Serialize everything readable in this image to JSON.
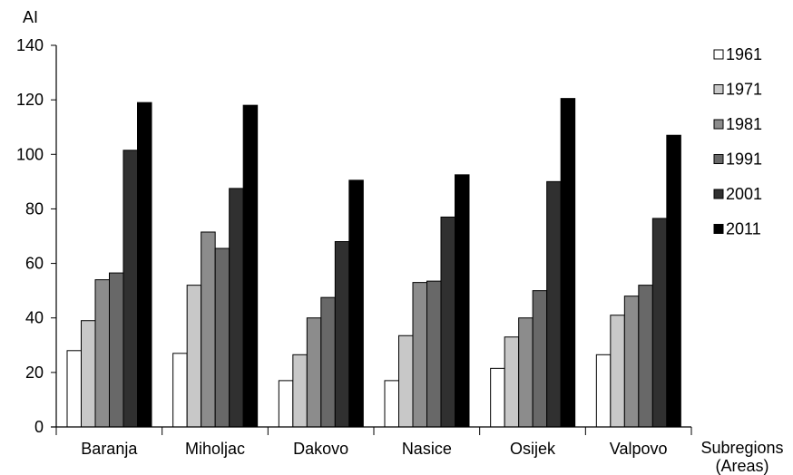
{
  "chart_data": {
    "type": "bar",
    "ylabel": "AI",
    "xlabel_lines": [
      "Subregions",
      "(Areas)"
    ],
    "categories": [
      "Baranja",
      "Miholjac",
      "Dakovo",
      "Nasice",
      "Osijek",
      "Valpovo"
    ],
    "ylim": [
      0,
      140
    ],
    "yticks": [
      0,
      20,
      40,
      60,
      80,
      100,
      120,
      140
    ],
    "grid": false,
    "legend_position": "right",
    "series": [
      {
        "name": "1961",
        "color": "#ffffff",
        "values": [
          28,
          27,
          17,
          17,
          21.5,
          26.5
        ]
      },
      {
        "name": "1971",
        "color": "#c8c8c8",
        "values": [
          39,
          52,
          26.5,
          33.5,
          33,
          41
        ]
      },
      {
        "name": "1981",
        "color": "#8c8c8c",
        "values": [
          54,
          71.5,
          40,
          53,
          40,
          48
        ]
      },
      {
        "name": "1991",
        "color": "#686868",
        "values": [
          56.5,
          65.5,
          47.5,
          53.5,
          50,
          52
        ]
      },
      {
        "name": "2001",
        "color": "#303030",
        "values": [
          101.5,
          87.5,
          68,
          77,
          90,
          76.5
        ]
      },
      {
        "name": "2011",
        "color": "#000000",
        "values": [
          119,
          118,
          90.5,
          92.5,
          120.5,
          107
        ]
      }
    ]
  }
}
